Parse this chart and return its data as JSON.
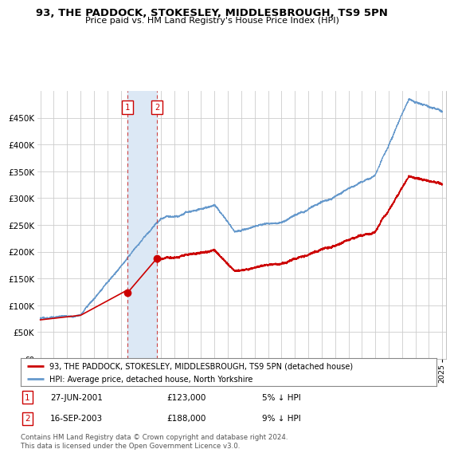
{
  "title": "93, THE PADDOCK, STOKESLEY, MIDDLESBROUGH, TS9 5PN",
  "subtitle": "Price paid vs. HM Land Registry's House Price Index (HPI)",
  "legend_line1": "93, THE PADDOCK, STOKESLEY, MIDDLESBROUGH, TS9 5PN (detached house)",
  "legend_line2": "HPI: Average price, detached house, North Yorkshire",
  "annotation1_date": "27-JUN-2001",
  "annotation1_price": "£123,000",
  "annotation1_hpi": "5% ↓ HPI",
  "annotation1_year": 2001.49,
  "annotation1_value": 123000,
  "annotation2_date": "16-SEP-2003",
  "annotation2_price": "£188,000",
  "annotation2_hpi": "9% ↓ HPI",
  "annotation2_year": 2003.71,
  "annotation2_value": 188000,
  "price_color": "#cc0000",
  "hpi_color": "#6699cc",
  "shade_color": "#dce8f5",
  "vline_color": "#cc4444",
  "footer": "Contains HM Land Registry data © Crown copyright and database right 2024.\nThis data is licensed under the Open Government Licence v3.0.",
  "ylim": [
    0,
    500000
  ],
  "yticks": [
    0,
    50000,
    100000,
    150000,
    200000,
    250000,
    300000,
    350000,
    400000,
    450000
  ],
  "xstart": 1995,
  "xend": 2025
}
